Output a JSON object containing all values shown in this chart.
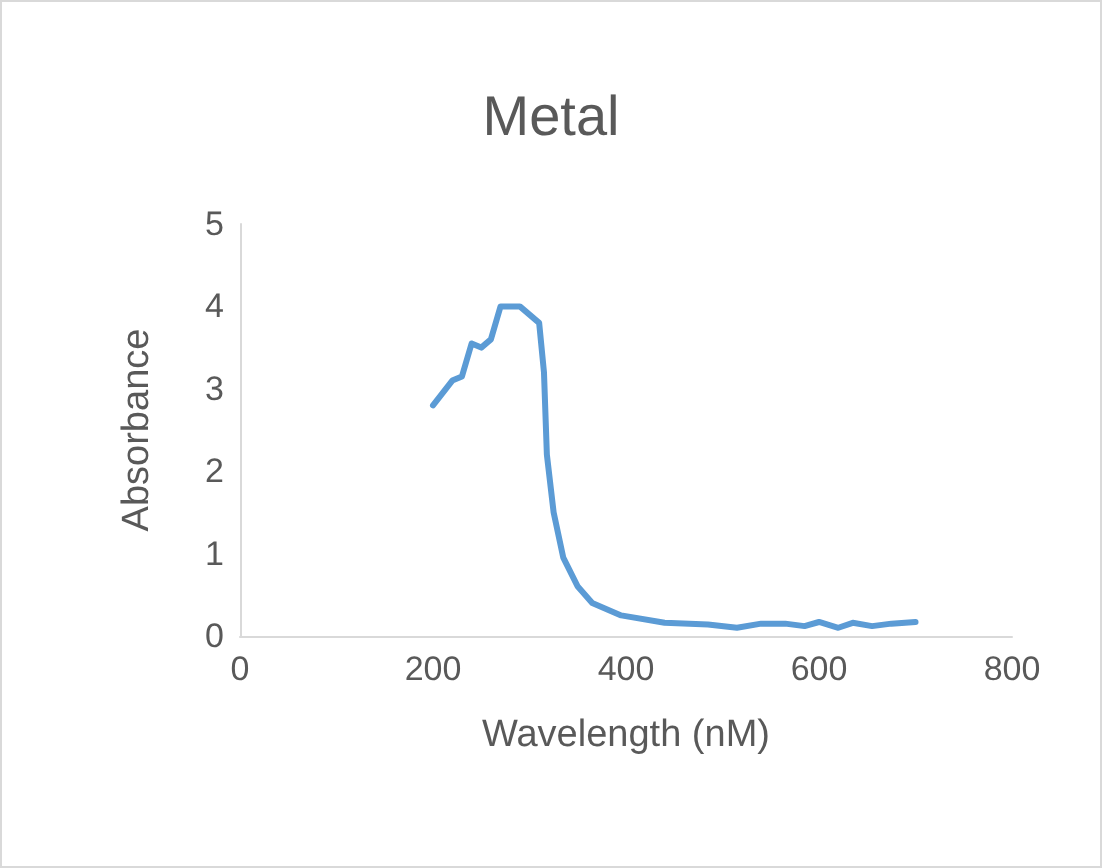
{
  "chart_data": {
    "type": "line",
    "title": "Metal",
    "xlabel": "Wavelength (nM)",
    "ylabel": "Absorbance",
    "xlim": [
      0,
      800
    ],
    "xticks": [
      0,
      200,
      400,
      600,
      800
    ],
    "ylim": [
      0,
      5
    ],
    "yticks": [
      0,
      1,
      2,
      3,
      4,
      5
    ],
    "grid": false,
    "marker": "none",
    "line_style": "solid",
    "series": [
      {
        "color": "#5b9bd5",
        "x": [
          200,
          220,
          230,
          240,
          250,
          260,
          270,
          290,
          300,
          310,
          315,
          318,
          325,
          335,
          350,
          365,
          395,
          440,
          485,
          515,
          540,
          565,
          585,
          600,
          620,
          635,
          655,
          675,
          700
        ],
        "values": [
          2.8,
          3.1,
          3.15,
          3.55,
          3.5,
          3.6,
          4.0,
          4.0,
          3.9,
          3.8,
          3.2,
          2.2,
          1.5,
          0.95,
          0.6,
          0.4,
          0.25,
          0.16,
          0.14,
          0.1,
          0.15,
          0.15,
          0.12,
          0.17,
          0.1,
          0.16,
          0.12,
          0.15,
          0.17
        ]
      }
    ]
  }
}
